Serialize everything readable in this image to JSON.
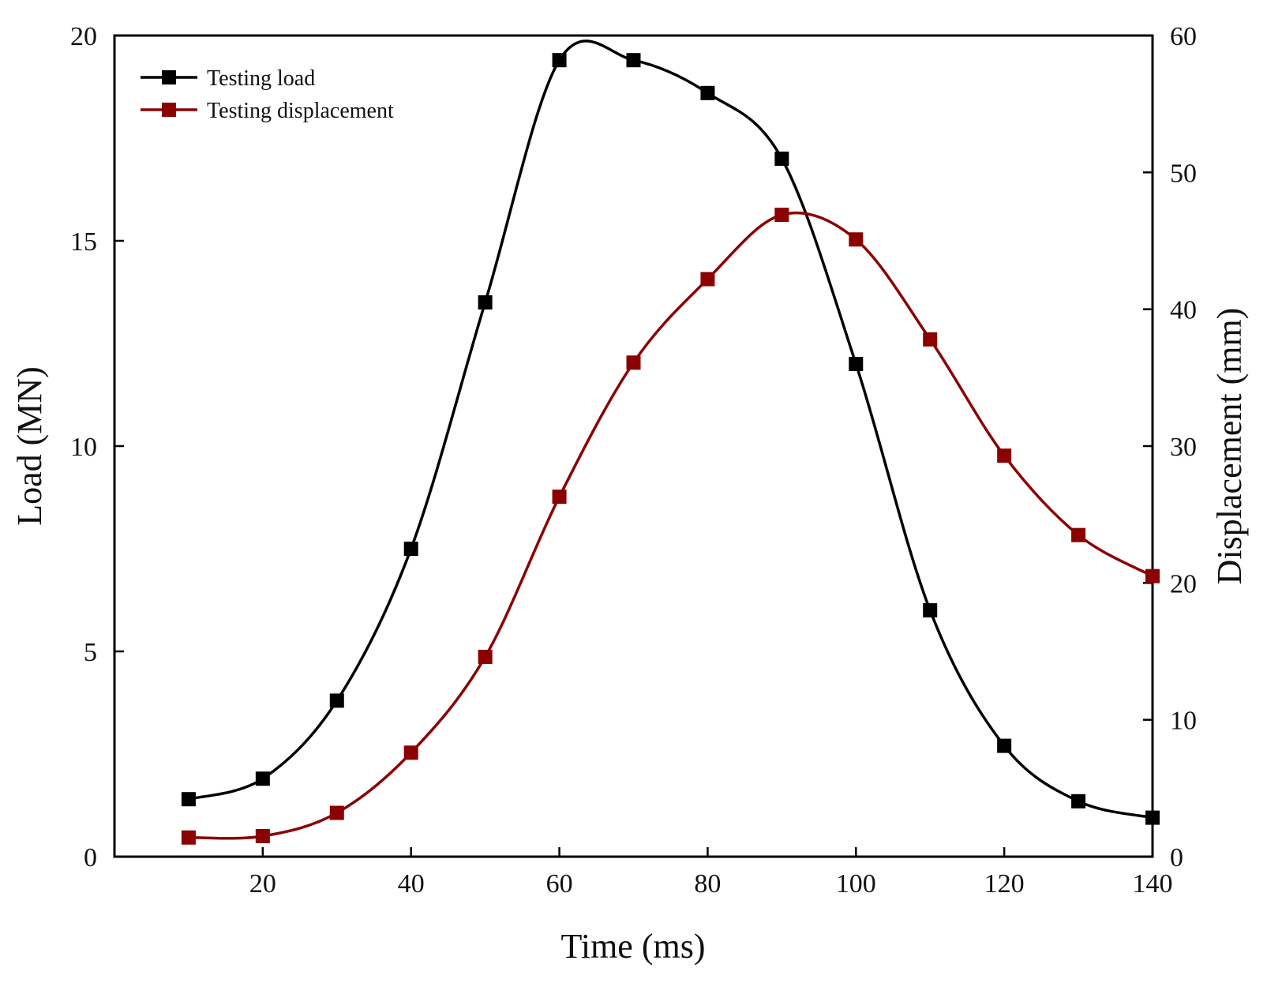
{
  "chart_data": {
    "type": "line",
    "title": "",
    "xlabel": "Time (ms)",
    "ylabel_left": "Load (MN)",
    "ylabel_right": "Displacement (mm)",
    "xlim": [
      0,
      140
    ],
    "ylim_left": [
      0,
      20
    ],
    "ylim_right": [
      0,
      60
    ],
    "xticks": [
      20,
      40,
      60,
      80,
      100,
      120,
      140
    ],
    "yticks_left": [
      0,
      5,
      10,
      15,
      20
    ],
    "yticks_right": [
      0,
      10,
      20,
      30,
      40,
      50,
      60
    ],
    "grid": false,
    "legend_position": "top-left",
    "x": [
      10,
      20,
      30,
      40,
      50,
      60,
      70,
      80,
      90,
      100,
      110,
      120,
      130,
      140
    ],
    "series": [
      {
        "name": "Testing load",
        "axis": "left",
        "color": "#000000",
        "marker": "square",
        "values": [
          1.4,
          1.9,
          3.8,
          7.5,
          13.5,
          19.4,
          19.4,
          18.6,
          17.0,
          12.0,
          6.0,
          2.7,
          1.35,
          0.95
        ]
      },
      {
        "name": "Testing displacement",
        "axis": "right",
        "color": "#8b0000",
        "marker": "square",
        "values": [
          1.4,
          1.5,
          3.2,
          7.6,
          14.6,
          26.3,
          36.1,
          42.2,
          46.9,
          45.1,
          37.8,
          29.3,
          23.5,
          20.5
        ]
      }
    ]
  }
}
